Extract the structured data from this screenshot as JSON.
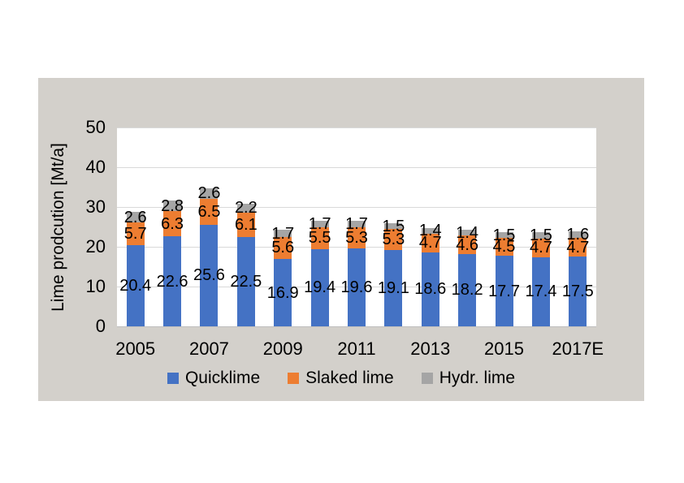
{
  "chart_data": {
    "type": "bar",
    "stacked": true,
    "title": "",
    "ylabel": "Lime prodcution [Mt/a]",
    "ylim": [
      0,
      50
    ],
    "yticks": [
      0,
      10,
      20,
      30,
      40,
      50
    ],
    "categories": [
      "2005",
      "2006",
      "2007",
      "2008",
      "2009",
      "2010",
      "2011",
      "2012",
      "2013",
      "2014",
      "2015",
      "2016",
      "2017E"
    ],
    "xtick_labels": [
      "2005",
      "2007",
      "2009",
      "2011",
      "2013",
      "2015",
      "2017E"
    ],
    "series": [
      {
        "name": "Quicklime",
        "color": "#4472C4",
        "values": [
          20.4,
          22.6,
          25.6,
          22.5,
          16.9,
          19.4,
          19.6,
          19.1,
          18.6,
          18.2,
          17.7,
          17.4,
          17.5
        ]
      },
      {
        "name": "Slaked lime",
        "color": "#ED7D31",
        "values": [
          5.7,
          6.3,
          6.5,
          6.1,
          5.6,
          5.5,
          5.3,
          5.3,
          4.7,
          4.6,
          4.5,
          4.7,
          4.7
        ]
      },
      {
        "name": "Hydr. lime",
        "color": "#A5A5A5",
        "values": [
          2.6,
          2.8,
          2.6,
          2.2,
          1.7,
          1.7,
          1.7,
          1.5,
          1.4,
          1.4,
          1.5,
          1.5,
          1.6
        ]
      }
    ],
    "legend": [
      "Quicklime",
      "Slaked lime",
      "Hydr. lime"
    ],
    "legend_position": "bottom",
    "grid": true,
    "data_labels": true
  },
  "colors": {
    "panel_background": "#d3d0cb",
    "plot_background": "#ffffff",
    "gridline": "#d9d9d9",
    "axis_line": "#bfbfbf",
    "label_text": "#000000"
  }
}
